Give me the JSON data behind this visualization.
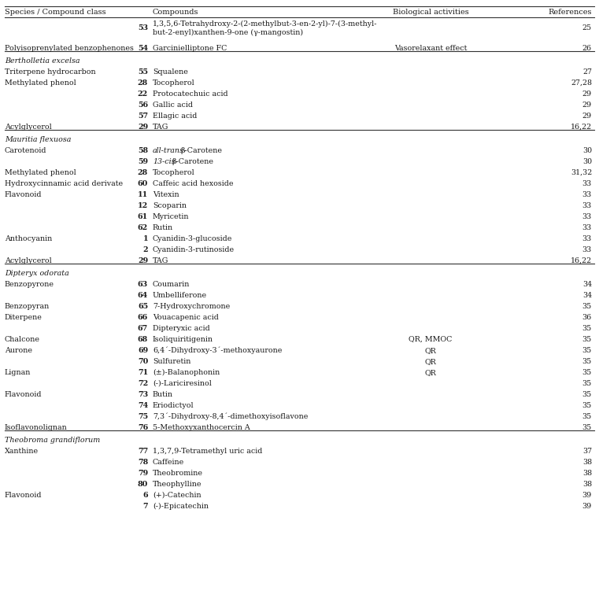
{
  "rows": [
    {
      "species": "",
      "num": "53",
      "compound": "1,3,5,6-Tetrahydroxy-2-(2-methylbut-3-en-2-yl)-7-(3-methyl-",
      "compound2": "but-2-enyl)xanthen-9-one (γ-mangostin)",
      "activity": "",
      "ref": "25",
      "italic_species": false,
      "section_line_below": false,
      "multiline": true
    },
    {
      "species": "Polyisoprenylated benzophenones",
      "num": "54",
      "compound": "Garcinielliptone FC",
      "compound2": "",
      "activity": "Vasorelaxant effect",
      "ref": "26",
      "italic_species": false,
      "section_line_below": true,
      "multiline": false
    },
    {
      "species": "Bertholletia excelsa",
      "num": "",
      "compound": "",
      "compound2": "",
      "activity": "",
      "ref": "",
      "italic_species": true,
      "section_line_below": false,
      "multiline": false
    },
    {
      "species": "Triterpene hydrocarbon",
      "num": "55",
      "compound": "Squalene",
      "compound2": "",
      "activity": "",
      "ref": "27",
      "italic_species": false,
      "section_line_below": false,
      "multiline": false
    },
    {
      "species": "Methylated phenol",
      "num": "28",
      "compound": "Tocopherol",
      "compound2": "",
      "activity": "",
      "ref": "27,28",
      "italic_species": false,
      "section_line_below": false,
      "multiline": false
    },
    {
      "species": "",
      "num": "22",
      "compound": "Protocatechuic acid",
      "compound2": "",
      "activity": "",
      "ref": "29",
      "italic_species": false,
      "section_line_below": false,
      "multiline": false
    },
    {
      "species": "",
      "num": "56",
      "compound": "Gallic acid",
      "compound2": "",
      "activity": "",
      "ref": "29",
      "italic_species": false,
      "section_line_below": false,
      "multiline": false
    },
    {
      "species": "",
      "num": "57",
      "compound": "Ellagic acid",
      "compound2": "",
      "activity": "",
      "ref": "29",
      "italic_species": false,
      "section_line_below": false,
      "multiline": false
    },
    {
      "species": "Acylglycerol",
      "num": "29",
      "compound": "TAG",
      "compound2": "",
      "activity": "",
      "ref": "16,22",
      "italic_species": false,
      "section_line_below": true,
      "multiline": false
    },
    {
      "species": "Mauritia flexuosa",
      "num": "",
      "compound": "",
      "compound2": "",
      "activity": "",
      "ref": "",
      "italic_species": true,
      "section_line_below": false,
      "multiline": false
    },
    {
      "species": "Carotenoid",
      "num": "58",
      "compound": "all-trans-β-Carotene",
      "compound2": "",
      "activity": "",
      "ref": "30",
      "italic_species": false,
      "section_line_below": false,
      "multiline": false,
      "italic_prefix": "all-trans-",
      "normal_suffix": "β-Carotene"
    },
    {
      "species": "",
      "num": "59",
      "compound": "13-cis-β-Carotene",
      "compound2": "",
      "activity": "",
      "ref": "30",
      "italic_species": false,
      "section_line_below": false,
      "multiline": false,
      "italic_prefix": "13-cis-",
      "normal_suffix": "β-Carotene"
    },
    {
      "species": "Methylated phenol",
      "num": "28",
      "compound": "Tocopherol",
      "compound2": "",
      "activity": "",
      "ref": "31,32",
      "italic_species": false,
      "section_line_below": false,
      "multiline": false
    },
    {
      "species": "Hydroxycinnamic acid derivate",
      "num": "60",
      "compound": "Caffeic acid hexoside",
      "compound2": "",
      "activity": "",
      "ref": "33",
      "italic_species": false,
      "section_line_below": false,
      "multiline": false
    },
    {
      "species": "Flavonoid",
      "num": "11",
      "compound": "Vitexin",
      "compound2": "",
      "activity": "",
      "ref": "33",
      "italic_species": false,
      "section_line_below": false,
      "multiline": false
    },
    {
      "species": "",
      "num": "12",
      "compound": "Scoparin",
      "compound2": "",
      "activity": "",
      "ref": "33",
      "italic_species": false,
      "section_line_below": false,
      "multiline": false
    },
    {
      "species": "",
      "num": "61",
      "compound": "Myricetin",
      "compound2": "",
      "activity": "",
      "ref": "33",
      "italic_species": false,
      "section_line_below": false,
      "multiline": false
    },
    {
      "species": "",
      "num": "62",
      "compound": "Rutin",
      "compound2": "",
      "activity": "",
      "ref": "33",
      "italic_species": false,
      "section_line_below": false,
      "multiline": false
    },
    {
      "species": "Anthocyanin",
      "num": "1",
      "compound": "Cyanidin-3-glucoside",
      "compound2": "",
      "activity": "",
      "ref": "33",
      "italic_species": false,
      "section_line_below": false,
      "multiline": false
    },
    {
      "species": "",
      "num": "2",
      "compound": "Cyanidin-3-rutinoside",
      "compound2": "",
      "activity": "",
      "ref": "33",
      "italic_species": false,
      "section_line_below": false,
      "multiline": false
    },
    {
      "species": "Acylglycerol",
      "num": "29",
      "compound": "TAG",
      "compound2": "",
      "activity": "",
      "ref": "16,22",
      "italic_species": false,
      "section_line_below": true,
      "multiline": false
    },
    {
      "species": "Dipteryx odorata",
      "num": "",
      "compound": "",
      "compound2": "",
      "activity": "",
      "ref": "",
      "italic_species": true,
      "section_line_below": false,
      "multiline": false
    },
    {
      "species": "Benzopyrone",
      "num": "63",
      "compound": "Coumarin",
      "compound2": "",
      "activity": "",
      "ref": "34",
      "italic_species": false,
      "section_line_below": false,
      "multiline": false
    },
    {
      "species": "",
      "num": "64",
      "compound": "Umbelliferone",
      "compound2": "",
      "activity": "",
      "ref": "34",
      "italic_species": false,
      "section_line_below": false,
      "multiline": false
    },
    {
      "species": "Benzopyran",
      "num": "65",
      "compound": "7-Hydroxychromone",
      "compound2": "",
      "activity": "",
      "ref": "35",
      "italic_species": false,
      "section_line_below": false,
      "multiline": false
    },
    {
      "species": "Diterpene",
      "num": "66",
      "compound": "Vouacapenic acid",
      "compound2": "",
      "activity": "",
      "ref": "36",
      "italic_species": false,
      "section_line_below": false,
      "multiline": false
    },
    {
      "species": "",
      "num": "67",
      "compound": "Dipteryxic acid",
      "compound2": "",
      "activity": "",
      "ref": "35",
      "italic_species": false,
      "section_line_below": false,
      "multiline": false
    },
    {
      "species": "Chalcone",
      "num": "68",
      "compound": "Isoliquiritigenin",
      "compound2": "",
      "activity": "QR, MMOC",
      "ref": "35",
      "italic_species": false,
      "section_line_below": false,
      "multiline": false
    },
    {
      "species": "Aurone",
      "num": "69",
      "compound": "6,4´-Dihydroxy-3´-methoxyaurone",
      "compound2": "",
      "activity": "QR",
      "ref": "35",
      "italic_species": false,
      "section_line_below": false,
      "multiline": false
    },
    {
      "species": "",
      "num": "70",
      "compound": "Sulfuretin",
      "compound2": "",
      "activity": "QR",
      "ref": "35",
      "italic_species": false,
      "section_line_below": false,
      "multiline": false
    },
    {
      "species": "Lignan",
      "num": "71",
      "compound": "(±)-Balanophonin",
      "compound2": "",
      "activity": "QR",
      "ref": "35",
      "italic_species": false,
      "section_line_below": false,
      "multiline": false
    },
    {
      "species": "",
      "num": "72",
      "compound": "(-)-Lariciresinol",
      "compound2": "",
      "activity": "",
      "ref": "35",
      "italic_species": false,
      "section_line_below": false,
      "multiline": false
    },
    {
      "species": "Flavonoid",
      "num": "73",
      "compound": "Butin",
      "compound2": "",
      "activity": "",
      "ref": "35",
      "italic_species": false,
      "section_line_below": false,
      "multiline": false
    },
    {
      "species": "",
      "num": "74",
      "compound": "Eriodictyol",
      "compound2": "",
      "activity": "",
      "ref": "35",
      "italic_species": false,
      "section_line_below": false,
      "multiline": false
    },
    {
      "species": "",
      "num": "75",
      "compound": "7,3´-Dihydroxy-8,4´-dimethoxyisoflavone",
      "compound2": "",
      "activity": "",
      "ref": "35",
      "italic_species": false,
      "section_line_below": false,
      "multiline": false
    },
    {
      "species": "Isoflavonolignan",
      "num": "76",
      "compound": "5-Methoxyxanthocercin A",
      "compound2": "",
      "activity": "",
      "ref": "35",
      "italic_species": false,
      "section_line_below": true,
      "multiline": false
    },
    {
      "species": "Theobroma grandiflorum",
      "num": "",
      "compound": "",
      "compound2": "",
      "activity": "",
      "ref": "",
      "italic_species": true,
      "section_line_below": false,
      "multiline": false
    },
    {
      "species": "Xanthine",
      "num": "77",
      "compound": "1,3,7,9-Tetramethyl uric acid",
      "compound2": "",
      "activity": "",
      "ref": "37",
      "italic_species": false,
      "section_line_below": false,
      "multiline": false
    },
    {
      "species": "",
      "num": "78",
      "compound": "Caffeine",
      "compound2": "",
      "activity": "",
      "ref": "38",
      "italic_species": false,
      "section_line_below": false,
      "multiline": false
    },
    {
      "species": "",
      "num": "79",
      "compound": "Theobromine",
      "compound2": "",
      "activity": "",
      "ref": "38",
      "italic_species": false,
      "section_line_below": false,
      "multiline": false
    },
    {
      "species": "",
      "num": "80",
      "compound": "Theophylline",
      "compound2": "",
      "activity": "",
      "ref": "38",
      "italic_species": false,
      "section_line_below": false,
      "multiline": false
    },
    {
      "species": "Flavonoid",
      "num": "6",
      "compound": "(+)-Catechin",
      "compound2": "",
      "activity": "",
      "ref": "39",
      "italic_species": false,
      "section_line_below": false,
      "multiline": false
    },
    {
      "species": "",
      "num": "7",
      "compound": "(-)-Epicatechin",
      "compound2": "",
      "activity": "",
      "ref": "39",
      "italic_species": false,
      "section_line_below": false,
      "multiline": false
    }
  ],
  "font_size": 6.8,
  "header_font_size": 7.0,
  "bg_color": "#ffffff",
  "text_color": "#1a1a1a",
  "line_color": "#333333"
}
